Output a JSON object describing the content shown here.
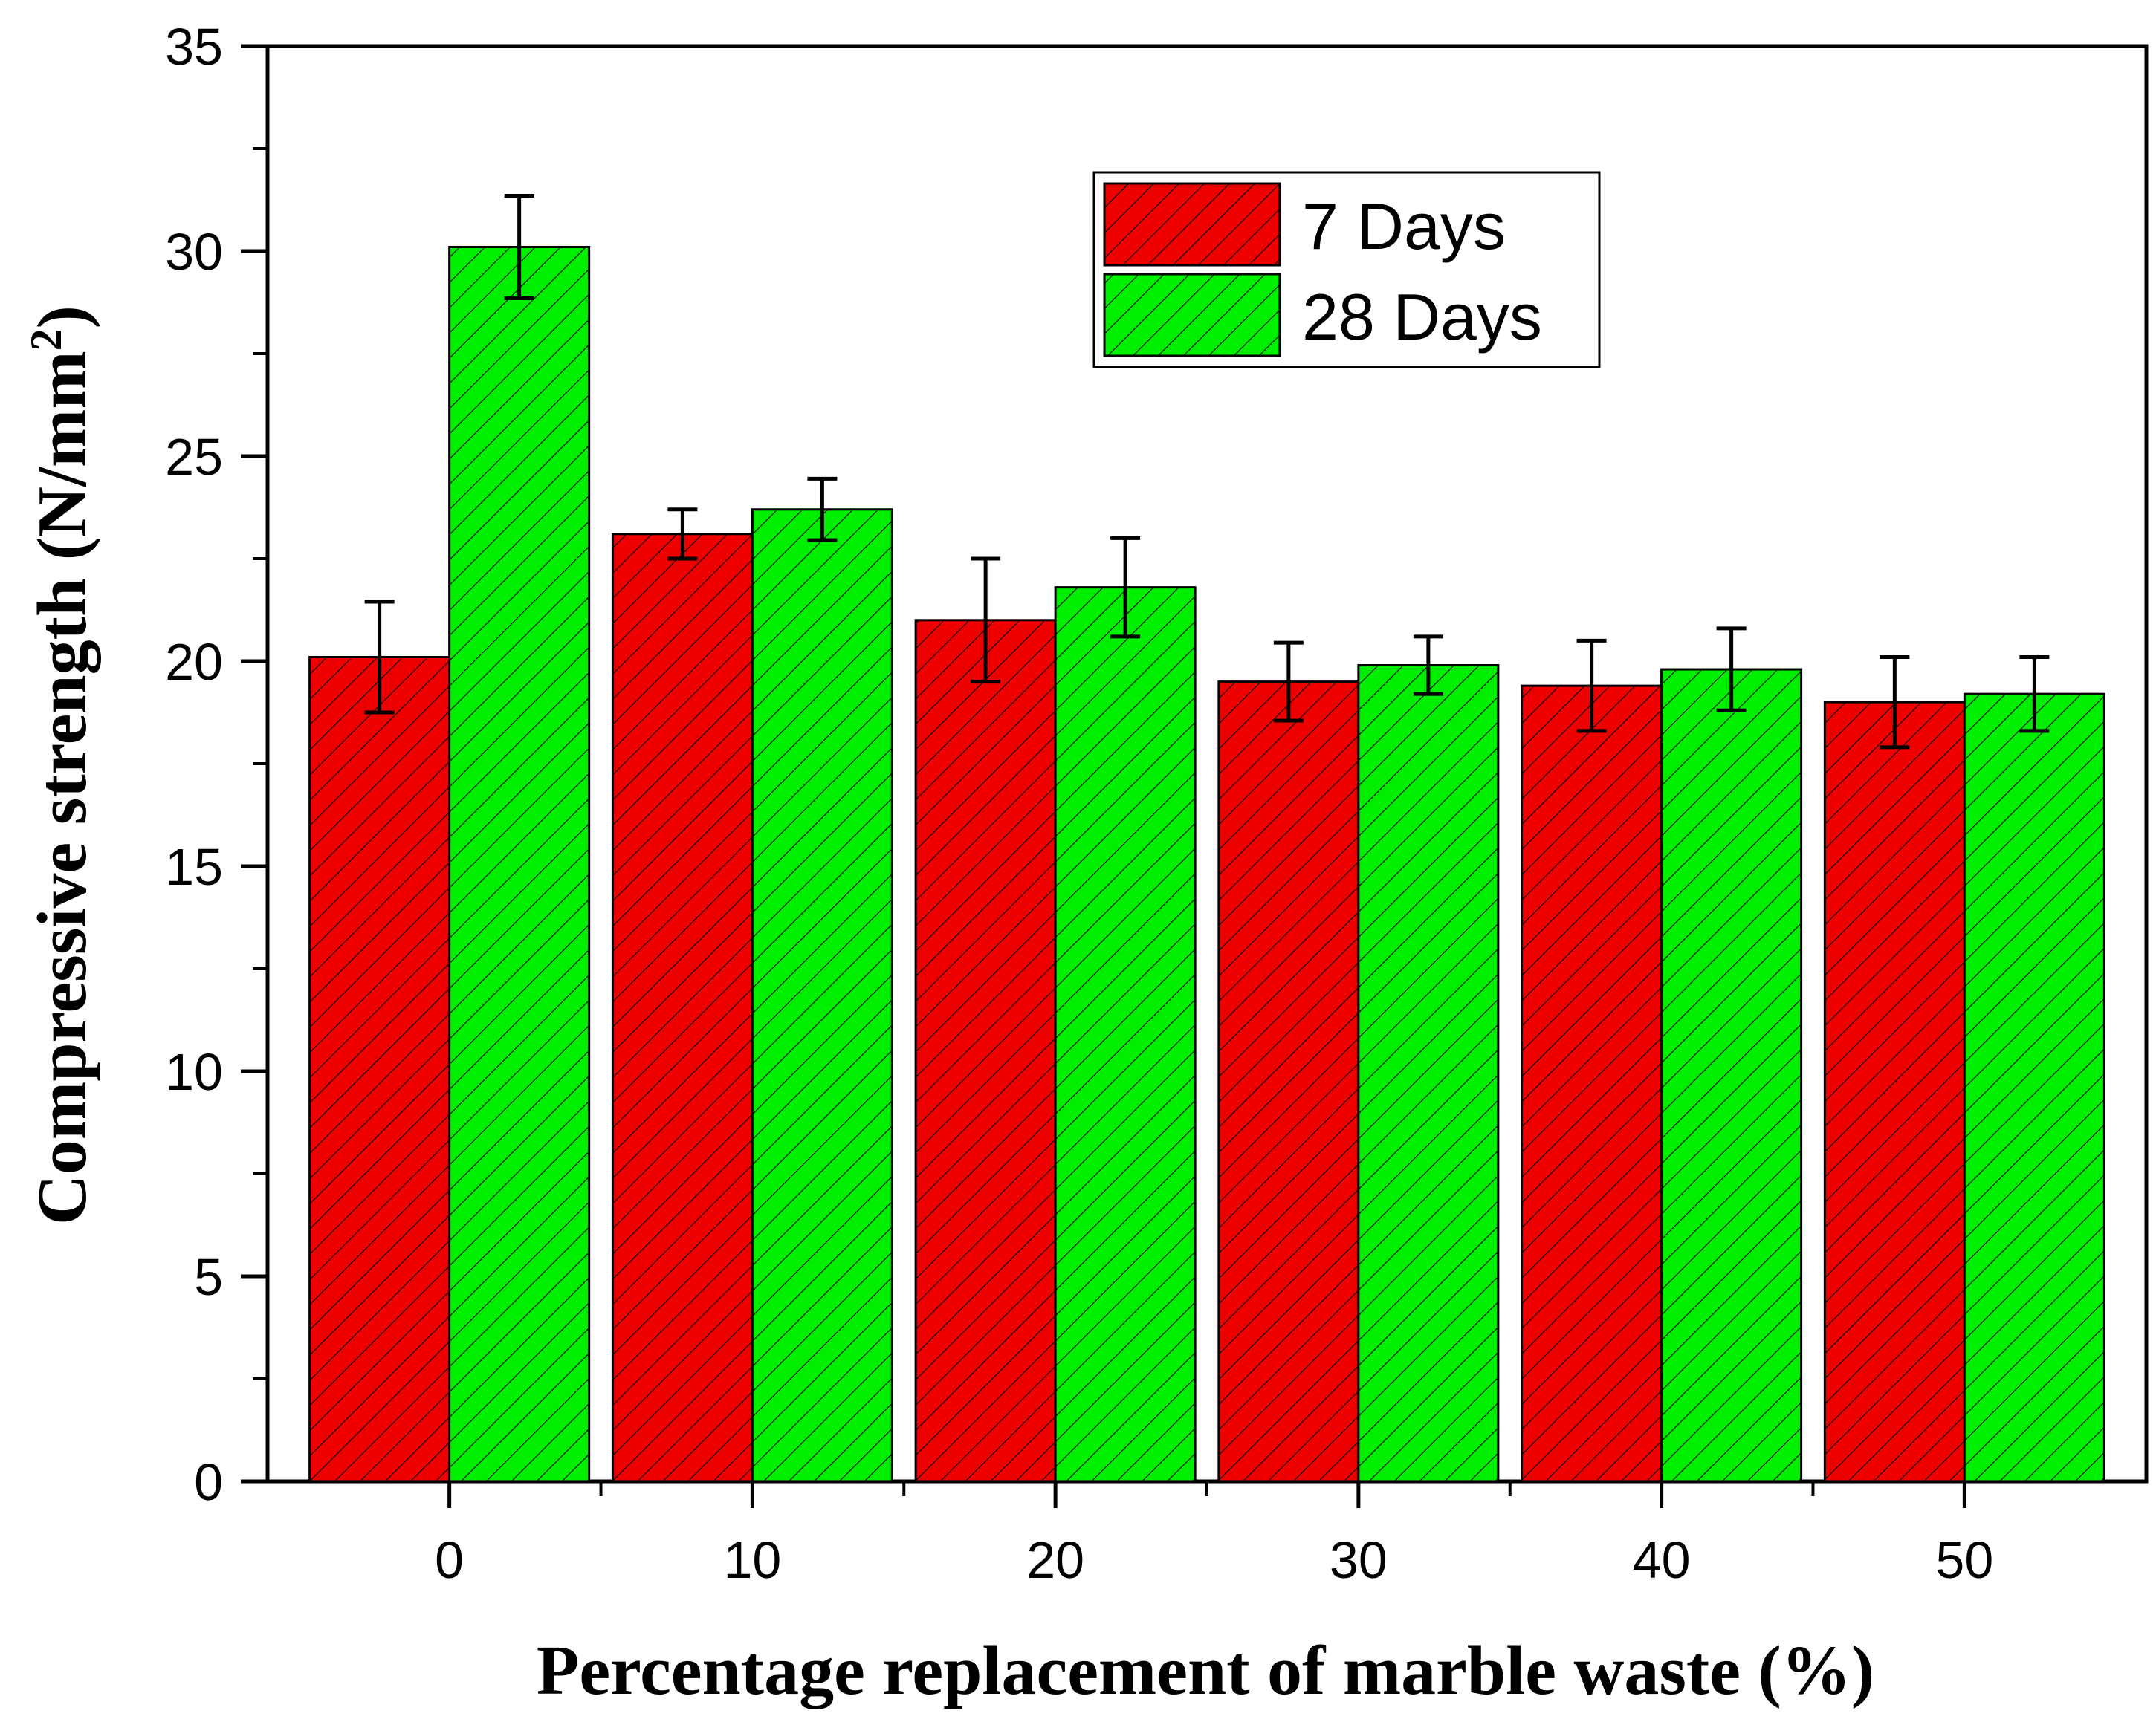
{
  "chart_data": {
    "type": "bar",
    "xlabel": "Percentage replacement of marble waste (%)",
    "ylabel": "Compressive strength (N/mm",
    "ylabel_sup": "2",
    "ylabel_close": ")",
    "ylim": [
      0,
      35
    ],
    "yticks": [
      0,
      5,
      10,
      15,
      20,
      25,
      30,
      35
    ],
    "categories": [
      "0",
      "10",
      "20",
      "30",
      "40",
      "50"
    ],
    "series": [
      {
        "name": "7 Days",
        "color": "#ee0000",
        "values": [
          20.1,
          23.1,
          21.0,
          19.5,
          19.4,
          19.0
        ],
        "errors": [
          1.35,
          0.6,
          1.5,
          0.95,
          1.1,
          1.1
        ]
      },
      {
        "name": "28 Days",
        "color": "#00ee00",
        "values": [
          30.1,
          23.7,
          21.8,
          19.9,
          19.8,
          19.2
        ],
        "errors": [
          1.25,
          0.75,
          1.2,
          0.7,
          1.0,
          0.9
        ]
      }
    ],
    "legend_position": "top-right",
    "pattern": "diagonal-hatch",
    "grid": false
  }
}
